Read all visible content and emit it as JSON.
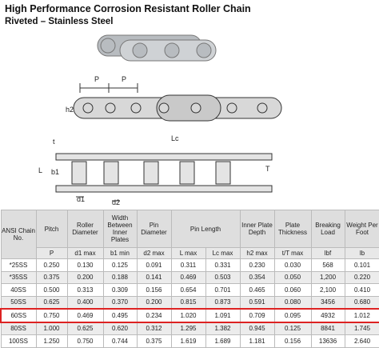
{
  "header": {
    "title": "High Performance Corrosion Resistant Roller Chain",
    "subtitle": "Riveted – Stainless Steel"
  },
  "diagram": {
    "labels": [
      "P",
      "P",
      "h2",
      "t",
      "L",
      "b1",
      "Lc",
      "T",
      "d1",
      "d2"
    ]
  },
  "table": {
    "headers": [
      "ANSI Chain No.",
      "Pitch",
      "Roller Diameter",
      "Width Between Inner Plates",
      "Pin Diameter",
      "Pin Length",
      "Inner Plate Depth",
      "Plate Thickness",
      "Breaking Load",
      "Weight Per Foot"
    ],
    "subheaders": [
      "P",
      "d1 max",
      "b1 min",
      "d2 max",
      "L max",
      "Lc max",
      "h2 max",
      "t/T max",
      "lbf",
      "lb"
    ],
    "rows": [
      [
        "*25SS",
        "0.250",
        "0.130",
        "0.125",
        "0.091",
        "0.311",
        "0.331",
        "0.230",
        "0.030",
        "568",
        "0.101"
      ],
      [
        "*35SS",
        "0.375",
        "0.200",
        "0.188",
        "0.141",
        "0.469",
        "0.503",
        "0.354",
        "0.050",
        "1,200",
        "0.220"
      ],
      [
        "40SS",
        "0.500",
        "0.313",
        "0.309",
        "0.156",
        "0.654",
        "0.701",
        "0.465",
        "0.060",
        "2,100",
        "0.410"
      ],
      [
        "50SS",
        "0.625",
        "0.400",
        "0.370",
        "0.200",
        "0.815",
        "0.873",
        "0.591",
        "0.080",
        "3456",
        "0.680"
      ],
      [
        "60SS",
        "0.750",
        "0.469",
        "0.495",
        "0.234",
        "1.020",
        "1.091",
        "0.709",
        "0.095",
        "4932",
        "1.012"
      ],
      [
        "80SS",
        "1.000",
        "0.625",
        "0.620",
        "0.312",
        "1.295",
        "1.382",
        "0.945",
        "0.125",
        "8841",
        "1.745"
      ],
      [
        "100SS",
        "1.250",
        "0.750",
        "0.744",
        "0.375",
        "1.619",
        "1.689",
        "1.181",
        "0.156",
        "13636",
        "2.640"
      ]
    ]
  }
}
